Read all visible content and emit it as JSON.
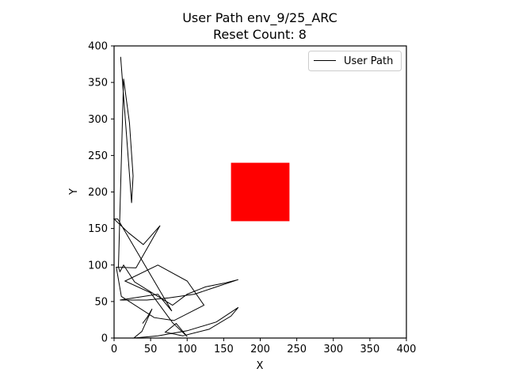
{
  "chart_data": {
    "type": "line",
    "title_line1": "User Path env_9/25_ARC",
    "title_line2": "Reset Count: 8",
    "xlabel": "X",
    "ylabel": "Y",
    "xlim": [
      0,
      400
    ],
    "ylim": [
      0,
      400
    ],
    "xticks": [
      0,
      50,
      100,
      150,
      200,
      250,
      300,
      350,
      400
    ],
    "yticks": [
      0,
      50,
      100,
      150,
      200,
      250,
      300,
      350,
      400
    ],
    "xtick_labels": [
      "0",
      "50",
      "100",
      "150",
      "200",
      "250",
      "300",
      "350",
      "400"
    ],
    "ytick_labels": [
      "0",
      "50",
      "100",
      "150",
      "200",
      "250",
      "300",
      "350",
      "400"
    ],
    "grid": false,
    "legend": {
      "placement": "top-right",
      "entries": [
        "User Path"
      ]
    },
    "colors": {
      "path": "#000000",
      "target": "#ff0000",
      "axes": "#000000"
    },
    "target_region": {
      "x": [
        160,
        240
      ],
      "y": [
        160,
        240
      ]
    },
    "series": [
      {
        "name": "User Path",
        "x": [
          9,
          24,
          26,
          21,
          13,
          6,
          8,
          13,
          28,
          55,
          80,
          100,
          125,
          150,
          170,
          140,
          110,
          75,
          45,
          8,
          60,
          79,
          5,
          0,
          20,
          40,
          63,
          30,
          3,
          10,
          55,
          82,
          123,
          100,
          60,
          15,
          50,
          80,
          100,
          85,
          70,
          94,
          130,
          160,
          170,
          140,
          100,
          60,
          27,
          38,
          52,
          45,
          39
        ],
        "y": [
          385,
          185,
          222,
          295,
          355,
          97,
          91,
          100,
          77,
          60,
          45,
          60,
          70,
          75,
          80,
          70,
          60,
          55,
          52,
          52,
          60,
          37,
          163,
          163,
          144,
          128,
          154,
          96,
          97,
          57,
          28,
          24,
          45,
          78,
          100,
          78,
          62,
          21,
          2,
          20,
          8,
          3,
          12,
          30,
          42,
          22,
          10,
          3,
          0,
          9,
          40,
          28,
          20
        ]
      }
    ]
  }
}
